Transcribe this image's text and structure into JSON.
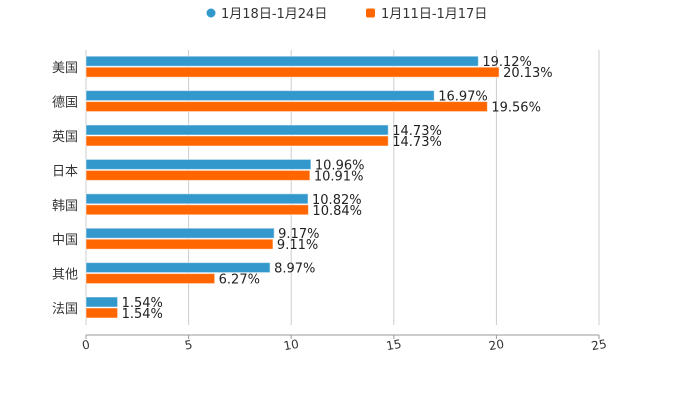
{
  "chart_data": {
    "type": "bar",
    "orientation": "horizontal",
    "categories": [
      "美国",
      "德国",
      "英国",
      "日本",
      "韩国",
      "中国",
      "其他",
      "法国"
    ],
    "series": [
      {
        "name": "1月18日-1月24日",
        "color": "#3399cc",
        "marker": "circle",
        "values": [
          19.12,
          16.97,
          14.73,
          10.96,
          10.82,
          9.17,
          8.97,
          1.54
        ],
        "labels": [
          "19.12%",
          "16.97%",
          "14.73%",
          "10.96%",
          "10.82%",
          "9.17%",
          "8.97%",
          "1.54%"
        ]
      },
      {
        "name": "1月11日-1月17日",
        "color": "#ff6600",
        "marker": "square",
        "values": [
          20.13,
          19.56,
          14.73,
          10.91,
          10.84,
          9.11,
          6.27,
          1.54
        ],
        "labels": [
          "20.13%",
          "19.56%",
          "14.73%",
          "10.91%",
          "10.84%",
          "9.11%",
          "6.27%",
          "1.54%"
        ]
      }
    ],
    "xlim": [
      0,
      25
    ],
    "xticks": [
      "0",
      "5",
      "10",
      "15",
      "20",
      "25"
    ],
    "grid": true,
    "legend_position": "top-center",
    "title": "",
    "xlabel": "",
    "ylabel": ""
  }
}
